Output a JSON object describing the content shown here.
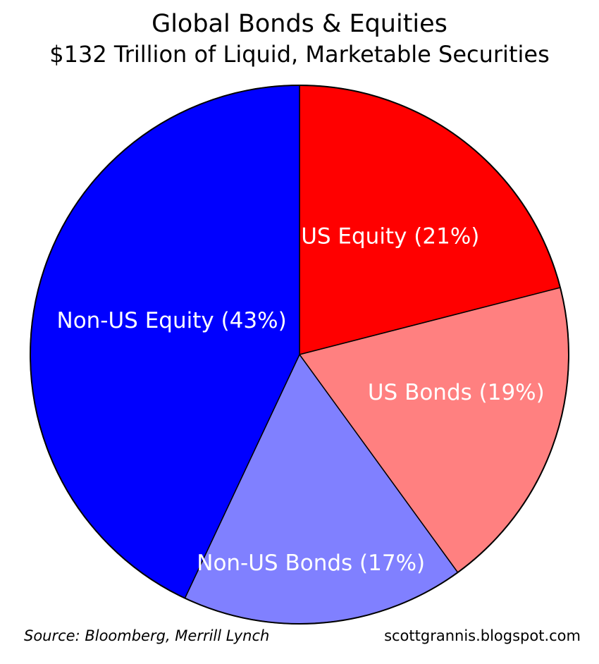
{
  "chart_data": {
    "type": "pie",
    "title": "Global Bonds & Equities",
    "subtitle": "$132 Trillion of Liquid, Marketable Securities",
    "slices": [
      {
        "label": "US Equity (21%)",
        "value": 21,
        "color": "#ff0000"
      },
      {
        "label": "US Bonds (19%)",
        "value": 19,
        "color": "#ff8080"
      },
      {
        "label": "Non-US Bonds (17%)",
        "value": 17,
        "color": "#8080ff"
      },
      {
        "label": "Non-US Equity (43%)",
        "value": 43,
        "color": "#0000ff"
      }
    ],
    "start": "12 o'clock",
    "direction": "clockwise",
    "label_color": "#ffffff",
    "border_color": "#000000"
  },
  "footer": {
    "source": "Source: Bloomberg, Merrill Lynch",
    "site": "scottgrannis.blogspot.com"
  }
}
